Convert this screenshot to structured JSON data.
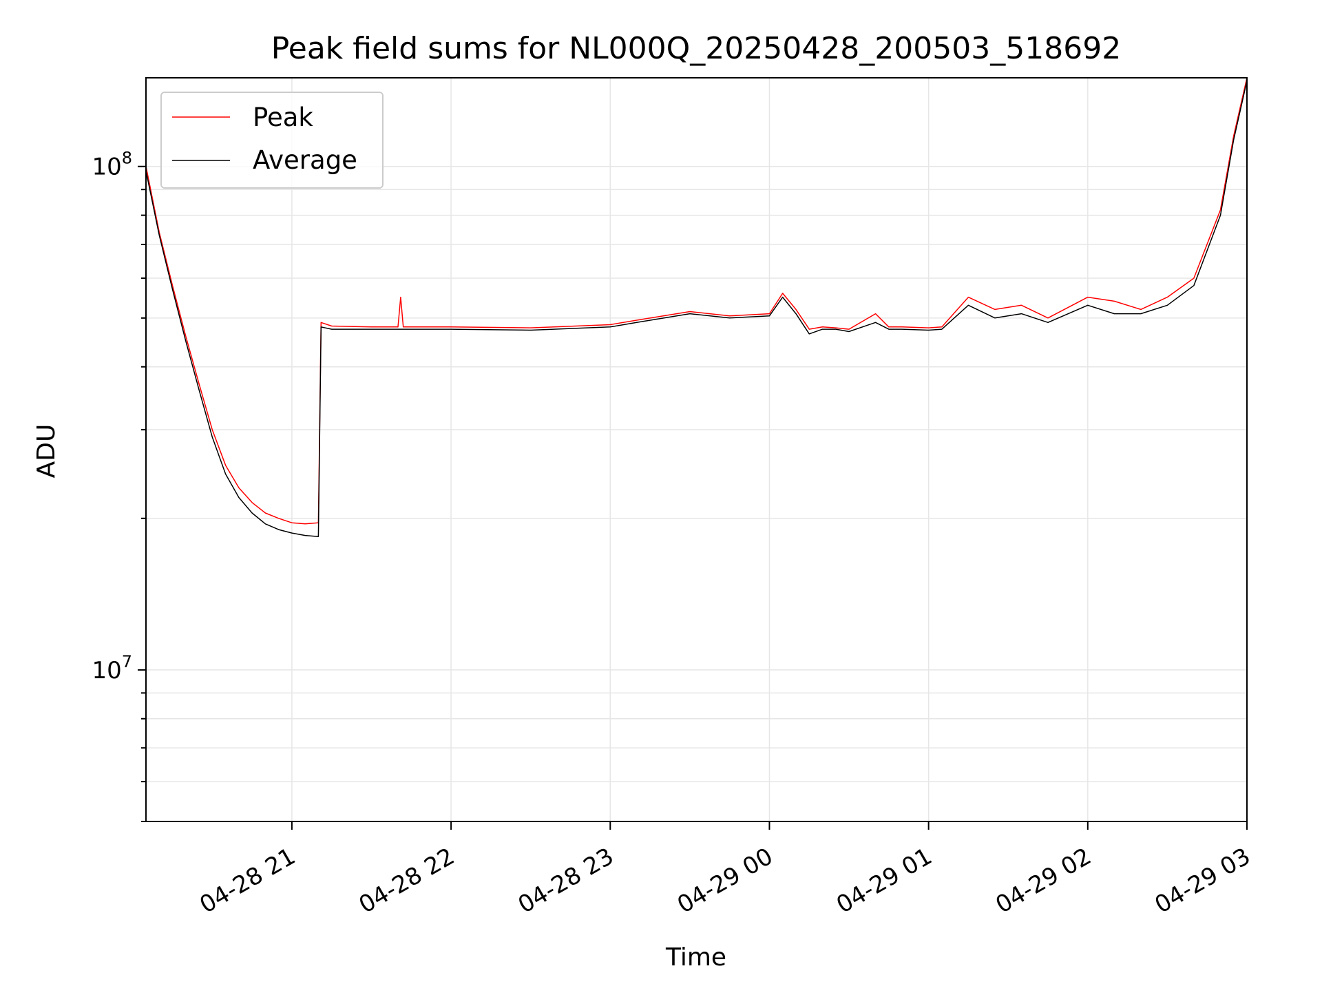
{
  "chart_data": {
    "type": "line",
    "title": "Peak field sums for NL000Q_20250428_200503_518692",
    "xlabel": "Time",
    "ylabel": "ADU",
    "x_scale": "time",
    "y_scale": "log",
    "xlim": [
      "2025-04-28 20:05",
      "2025-04-29 03:00"
    ],
    "ylim": [
      5000000,
      150000000
    ],
    "x_ticks": [
      {
        "value": "2025-04-28 21:00",
        "label": "04-28 21"
      },
      {
        "value": "2025-04-28 22:00",
        "label": "04-28 22"
      },
      {
        "value": "2025-04-28 23:00",
        "label": "04-28 23"
      },
      {
        "value": "2025-04-29 00:00",
        "label": "04-29 00"
      },
      {
        "value": "2025-04-29 01:00",
        "label": "04-29 01"
      },
      {
        "value": "2025-04-29 02:00",
        "label": "04-29 02"
      },
      {
        "value": "2025-04-29 03:00",
        "label": "04-29 03"
      }
    ],
    "y_ticks": [
      {
        "value": 10000000,
        "base": "10",
        "exp": "7"
      },
      {
        "value": 100000000,
        "base": "10",
        "exp": "8"
      }
    ],
    "grid": true,
    "legend": {
      "position": "top-left"
    },
    "series": [
      {
        "name": "Peak",
        "color": "#ff0000",
        "x": [
          "2025-04-28 20:05",
          "2025-04-28 20:10",
          "2025-04-28 20:15",
          "2025-04-28 20:20",
          "2025-04-28 20:25",
          "2025-04-28 20:30",
          "2025-04-28 20:35",
          "2025-04-28 20:40",
          "2025-04-28 20:45",
          "2025-04-28 20:50",
          "2025-04-28 20:55",
          "2025-04-28 21:00",
          "2025-04-28 21:05",
          "2025-04-28 21:10",
          "2025-04-28 21:11",
          "2025-04-28 21:15",
          "2025-04-28 21:30",
          "2025-04-28 21:40",
          "2025-04-28 21:41",
          "2025-04-28 21:42",
          "2025-04-28 22:00",
          "2025-04-28 22:30",
          "2025-04-28 23:00",
          "2025-04-28 23:10",
          "2025-04-28 23:30",
          "2025-04-28 23:45",
          "2025-04-29 00:00",
          "2025-04-29 00:05",
          "2025-04-29 00:10",
          "2025-04-29 00:15",
          "2025-04-29 00:20",
          "2025-04-29 00:25",
          "2025-04-29 00:30",
          "2025-04-29 00:40",
          "2025-04-29 00:45",
          "2025-04-29 00:50",
          "2025-04-29 01:00",
          "2025-04-29 01:05",
          "2025-04-29 01:15",
          "2025-04-29 01:25",
          "2025-04-29 01:35",
          "2025-04-29 01:45",
          "2025-04-29 02:00",
          "2025-04-29 02:10",
          "2025-04-29 02:20",
          "2025-04-29 02:30",
          "2025-04-29 02:40",
          "2025-04-29 02:50",
          "2025-04-29 02:55",
          "2025-04-29 03:00"
        ],
        "y": [
          100000000,
          74000000,
          58000000,
          46000000,
          37000000,
          30000000,
          25500000,
          23000000,
          21500000,
          20500000,
          20000000,
          19600000,
          19500000,
          19600000,
          49000000,
          48200000,
          48000000,
          48000000,
          55000000,
          48000000,
          48000000,
          47800000,
          48500000,
          49500000,
          51500000,
          50500000,
          51000000,
          56000000,
          52000000,
          47500000,
          48000000,
          47800000,
          47500000,
          51000000,
          48000000,
          48000000,
          47800000,
          48000000,
          55000000,
          52000000,
          53000000,
          50000000,
          55000000,
          54000000,
          52000000,
          55000000,
          60000000,
          82000000,
          115000000,
          150000000
        ]
      },
      {
        "name": "Average",
        "color": "#000000",
        "x": [
          "2025-04-28 20:05",
          "2025-04-28 20:10",
          "2025-04-28 20:15",
          "2025-04-28 20:20",
          "2025-04-28 20:25",
          "2025-04-28 20:30",
          "2025-04-28 20:35",
          "2025-04-28 20:40",
          "2025-04-28 20:45",
          "2025-04-28 20:50",
          "2025-04-28 20:55",
          "2025-04-28 21:00",
          "2025-04-28 21:05",
          "2025-04-28 21:10",
          "2025-04-28 21:11",
          "2025-04-28 21:15",
          "2025-04-28 21:30",
          "2025-04-28 21:40",
          "2025-04-28 21:41",
          "2025-04-28 21:42",
          "2025-04-28 22:00",
          "2025-04-28 22:30",
          "2025-04-28 23:00",
          "2025-04-28 23:10",
          "2025-04-28 23:30",
          "2025-04-28 23:45",
          "2025-04-29 00:00",
          "2025-04-29 00:05",
          "2025-04-29 00:10",
          "2025-04-29 00:15",
          "2025-04-29 00:20",
          "2025-04-29 00:25",
          "2025-04-29 00:30",
          "2025-04-29 00:40",
          "2025-04-29 00:45",
          "2025-04-29 00:50",
          "2025-04-29 01:00",
          "2025-04-29 01:05",
          "2025-04-29 01:15",
          "2025-04-29 01:25",
          "2025-04-29 01:35",
          "2025-04-29 01:45",
          "2025-04-29 02:00",
          "2025-04-29 02:10",
          "2025-04-29 02:20",
          "2025-04-29 02:30",
          "2025-04-29 02:40",
          "2025-04-29 02:50",
          "2025-04-29 02:55",
          "2025-04-29 03:00"
        ],
        "y": [
          98000000,
          73000000,
          57000000,
          45000000,
          36000000,
          29000000,
          24500000,
          22000000,
          20500000,
          19500000,
          19000000,
          18700000,
          18500000,
          18400000,
          48000000,
          47500000,
          47500000,
          47500000,
          47500000,
          47500000,
          47500000,
          47300000,
          48000000,
          49000000,
          51000000,
          50000000,
          50500000,
          55000000,
          51000000,
          46500000,
          47500000,
          47500000,
          47000000,
          49000000,
          47500000,
          47500000,
          47300000,
          47500000,
          53000000,
          50000000,
          51000000,
          49000000,
          53000000,
          51000000,
          51000000,
          53000000,
          58000000,
          80000000,
          113000000,
          148000000
        ]
      }
    ]
  }
}
